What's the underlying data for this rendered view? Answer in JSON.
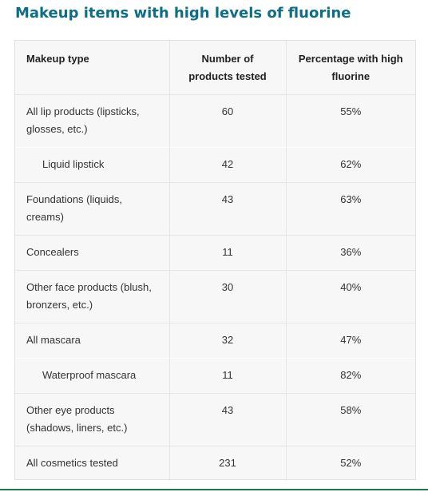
{
  "title": "Makeup items with high levels of fluorine",
  "table": {
    "headers": {
      "type": "Makeup type",
      "count": "Number of products tested",
      "percent": "Percentage with high fluorine"
    },
    "rows": [
      {
        "type": "All lip products (lipsticks, glosses, etc.)",
        "count": "60",
        "percent": "55%"
      },
      {
        "type": "Liquid lipstick",
        "count": "42",
        "percent": "62%"
      },
      {
        "type": "Foundations (liquids, creams)",
        "count": "43",
        "percent": "63%"
      },
      {
        "type": "Concealers",
        "count": "11",
        "percent": "36%"
      },
      {
        "type": "Other face products (blush, bronzers, etc.)",
        "count": "30",
        "percent": "40%"
      },
      {
        "type": "All mascara",
        "count": "32",
        "percent": "47%"
      },
      {
        "type": "Waterproof mascara",
        "count": "11",
        "percent": "82%"
      },
      {
        "type": "Other eye products (shadows, liners, etc.)",
        "count": "43",
        "percent": "58%"
      },
      {
        "type": "All cosmetics tested",
        "count": "231",
        "percent": "52%"
      }
    ]
  },
  "colors": {
    "title": "#0d6e86",
    "table_bg": "#f7f7f7",
    "bottom_rule": "#1a7a4a"
  }
}
